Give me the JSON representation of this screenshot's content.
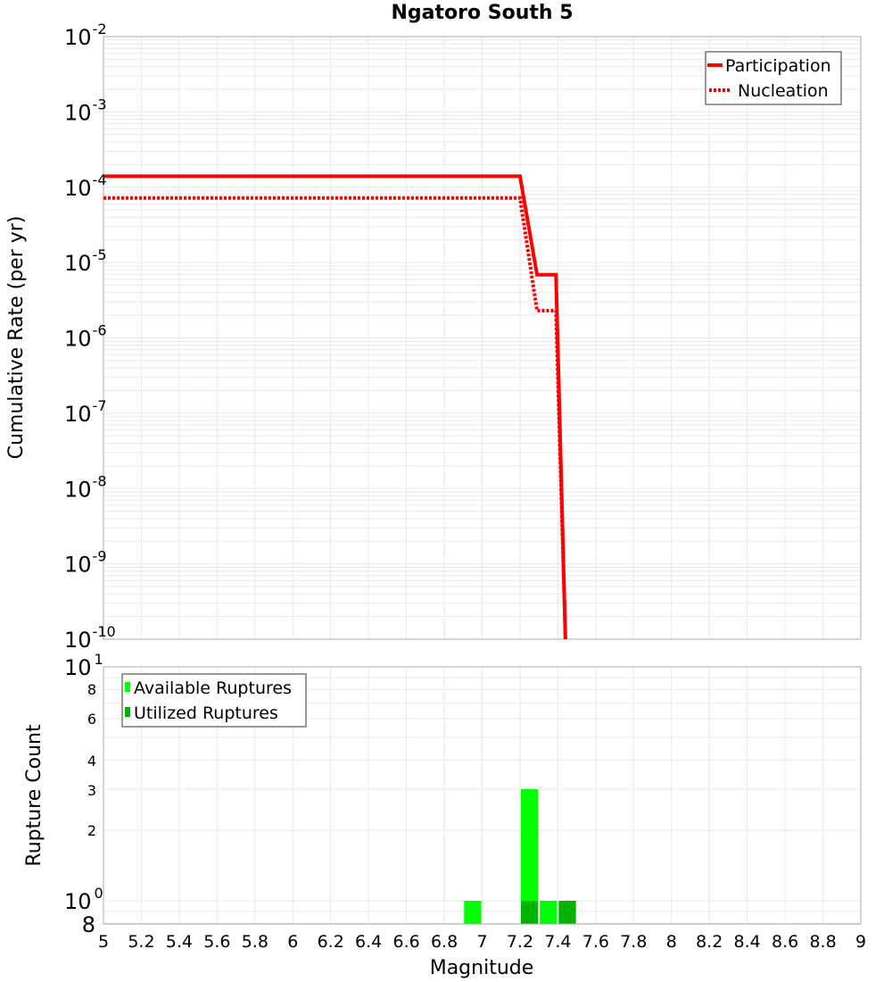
{
  "chart_data": [
    {
      "type": "line",
      "title": "Ngatoro South 5",
      "xlabel": "Magnitude",
      "ylabel": "Cumulative Rate (per yr)",
      "yscale": "log",
      "xlim": [
        5,
        9
      ],
      "ylim": [
        1e-10,
        0.01
      ],
      "grid": true,
      "legend_position": "top-right",
      "ytick_labels": [
        "10^-2",
        "10^-3",
        "10^-4",
        "10^-5",
        "10^-6",
        "10^-7",
        "10^-8",
        "10^-9",
        "10^-10"
      ],
      "series": [
        {
          "name": "Participation",
          "style": "solid",
          "color": "#ff0000",
          "x": [
            5.0,
            7.2,
            7.29,
            7.39,
            7.44
          ],
          "y": [
            0.00014,
            0.00014,
            6.9e-06,
            6.9e-06,
            1e-10
          ]
        },
        {
          "name": "Nucleation",
          "style": "dotted",
          "color": "#ff0000",
          "x": [
            5.0,
            7.2,
            7.29,
            7.39,
            7.44
          ],
          "y": [
            7.2e-05,
            7.2e-05,
            2.3e-06,
            2.3e-06,
            1e-10
          ]
        }
      ]
    },
    {
      "type": "bar",
      "xlabel": "Magnitude",
      "ylabel": "Rupture Count",
      "yscale": "log",
      "xlim": [
        5,
        9
      ],
      "ylim": [
        0.8,
        10
      ],
      "grid": true,
      "legend_position": "top-left",
      "xtick_labels": [
        "5",
        "5.2",
        "5.4",
        "5.6",
        "5.8",
        "6",
        "6.2",
        "6.4",
        "6.6",
        "6.8",
        "7",
        "7.2",
        "7.4",
        "7.6",
        "7.8",
        "8",
        "8.2",
        "8.4",
        "8.6",
        "8.8",
        "9"
      ],
      "ytick_labels": [
        "10^1",
        "8",
        "6",
        "4",
        "3",
        "2",
        "10^0",
        "8"
      ],
      "categories": [
        6.95,
        7.25,
        7.35,
        7.45
      ],
      "series": [
        {
          "name": "Available Ruptures",
          "color": "#00ff00",
          "values": [
            1,
            3,
            1,
            1
          ]
        },
        {
          "name": "Utilized Ruptures",
          "color": "#00b400",
          "values": [
            0,
            1,
            0,
            1
          ]
        }
      ]
    }
  ],
  "title": "Ngatoro South 5",
  "top": {
    "ylabel": "Cumulative Rate (per yr)",
    "yticks": [
      {
        "base": "10",
        "exp": "-2"
      },
      {
        "base": "10",
        "exp": "-3"
      },
      {
        "base": "10",
        "exp": "-4"
      },
      {
        "base": "10",
        "exp": "-5"
      },
      {
        "base": "10",
        "exp": "-6"
      },
      {
        "base": "10",
        "exp": "-7"
      },
      {
        "base": "10",
        "exp": "-8"
      },
      {
        "base": "10",
        "exp": "-9"
      },
      {
        "base": "10",
        "exp": "-10"
      }
    ],
    "legend": {
      "participation": "Participation",
      "nucleation": "Nucleation"
    }
  },
  "bottom": {
    "ylabel": "Rupture Count",
    "ytick_top": {
      "base": "10",
      "exp": "1"
    },
    "ytick_mid": {
      "base": "10",
      "exp": "0"
    },
    "ytick_minor": [
      "8",
      "6",
      "4",
      "3",
      "2"
    ],
    "ytick_bottom": "8",
    "legend": {
      "available": "Available Ruptures",
      "utilized": "Utilized Ruptures"
    }
  },
  "xaxis": {
    "label": "Magnitude",
    "ticks": [
      "5",
      "5.2",
      "5.4",
      "5.6",
      "5.8",
      "6",
      "6.2",
      "6.4",
      "6.6",
      "6.8",
      "7",
      "7.2",
      "7.4",
      "7.6",
      "7.8",
      "8",
      "8.2",
      "8.4",
      "8.6",
      "8.8",
      "9"
    ]
  },
  "colors": {
    "line": "#ff0000",
    "available": "#00ff00",
    "utilized": "#00b400",
    "grid": "#e8e8e8",
    "axis": "#a0a0a0"
  }
}
